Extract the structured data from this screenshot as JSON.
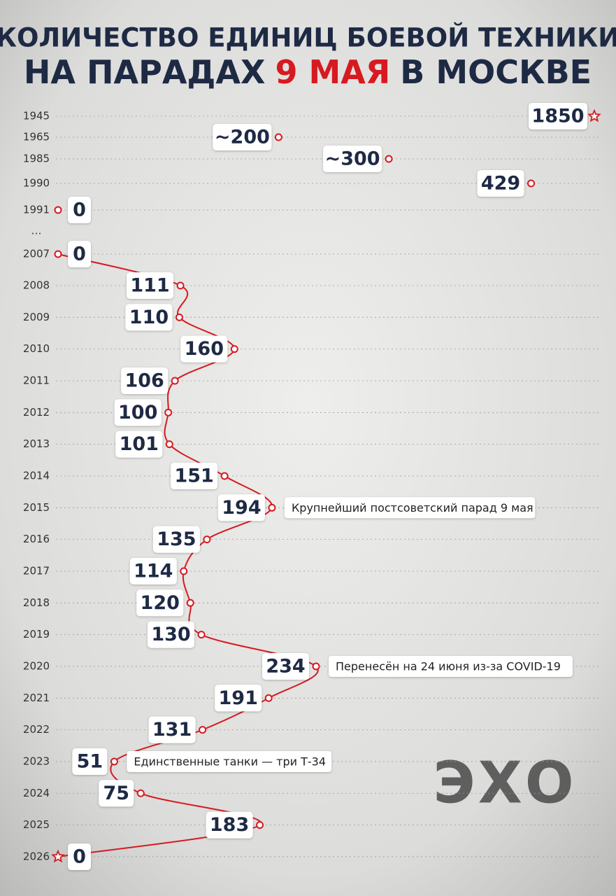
{
  "chart_data": {
    "type": "line",
    "title_line1": "КОЛИЧЕСТВО ЕДИНИЦ БОЕВОЙ ТЕХНИКИ",
    "title_line2": [
      {
        "text": "НА ПАРАДАХ",
        "color": "#1e2a44"
      },
      {
        "text": "9 МАЯ",
        "color": "#d71920"
      },
      {
        "text": "В МОСКВЕ",
        "color": "#1e2a44"
      }
    ],
    "categories": [
      "1945",
      "1965",
      "1985",
      "1990",
      "1991",
      "…",
      "2007",
      "2008",
      "2009",
      "2010",
      "2011",
      "2012",
      "2013",
      "2014",
      "2015",
      "2016",
      "2017",
      "2018",
      "2019",
      "2020",
      "2021",
      "2022",
      "2023",
      "2024",
      "2025",
      "2026"
    ],
    "series": [
      {
        "color": "#d71920",
        "connected": false,
        "values": [
          1850,
          200,
          300,
          429,
          0,
          null,
          null,
          null,
          null,
          null,
          null,
          null,
          null,
          null,
          null,
          null,
          null,
          null,
          null,
          null,
          null,
          null,
          null,
          null,
          null,
          null
        ],
        "value_labels": [
          null,
          "~200",
          "~300",
          null,
          null,
          null,
          null,
          null,
          null,
          null,
          null,
          null,
          null,
          null,
          null,
          null,
          null,
          null,
          null,
          null,
          null,
          null,
          null,
          null,
          null,
          null
        ]
      },
      {
        "color": "#d71920",
        "connected": true,
        "values": [
          null,
          null,
          null,
          null,
          null,
          null,
          0,
          111,
          110,
          160,
          106,
          100,
          101,
          151,
          194,
          135,
          114,
          120,
          130,
          234,
          191,
          131,
          51,
          75,
          183,
          0
        ]
      }
    ],
    "star_markers": [
      "1945",
      "2026"
    ],
    "annotations": [
      {
        "category": "2015",
        "text": "Крупнейший постсоветский парад 9 мая"
      },
      {
        "category": "2020",
        "text": "Перенесён на 24 июня из-за COVID-19"
      },
      {
        "category": "2023",
        "text": "Единственные танки — три Т-34"
      }
    ],
    "label_color": "#1e2a44",
    "logo": "ЭХО"
  }
}
